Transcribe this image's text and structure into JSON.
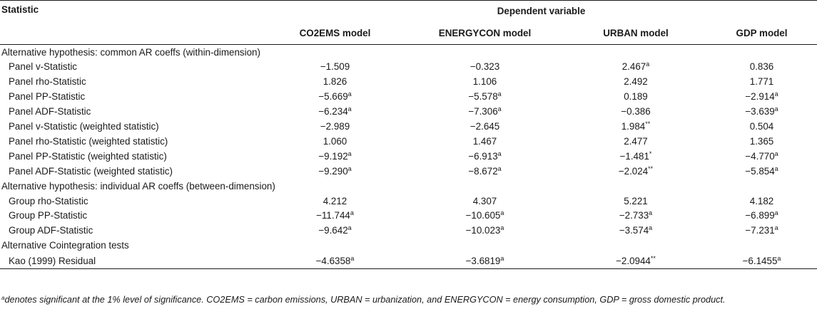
{
  "header": {
    "statistic": "Statistic",
    "dependent_variable": "Dependent variable",
    "models": [
      "CO2EMS model",
      "ENERGYCON model",
      "URBAN model",
      "GDP model"
    ]
  },
  "sections": [
    {
      "title": "Alternative hypothesis: common AR coeffs (within-dimension)",
      "rows": [
        {
          "label": "Panel v-Statistic",
          "cells": [
            {
              "v": "−1.509",
              "s": ""
            },
            {
              "v": "−0.323",
              "s": ""
            },
            {
              "v": "2.467",
              "s": "a"
            },
            {
              "v": "0.836",
              "s": ""
            }
          ]
        },
        {
          "label": "Panel rho-Statistic",
          "cells": [
            {
              "v": "1.826",
              "s": ""
            },
            {
              "v": "1.106",
              "s": ""
            },
            {
              "v": "2.492",
              "s": ""
            },
            {
              "v": "1.771",
              "s": ""
            }
          ]
        },
        {
          "label": "Panel PP-Statistic",
          "cells": [
            {
              "v": "−5.669",
              "s": "a"
            },
            {
              "v": "−5.578",
              "s": "a"
            },
            {
              "v": "0.189",
              "s": ""
            },
            {
              "v": "−2.914",
              "s": "a"
            }
          ]
        },
        {
          "label": "Panel ADF-Statistic",
          "cells": [
            {
              "v": "−6.234",
              "s": "a"
            },
            {
              "v": "−7.306",
              "s": "a"
            },
            {
              "v": "−0.386",
              "s": ""
            },
            {
              "v": "−3.639",
              "s": "a"
            }
          ]
        },
        {
          "label": "Panel v-Statistic (weighted statistic)",
          "cells": [
            {
              "v": "−2.989",
              "s": ""
            },
            {
              "v": "−2.645",
              "s": ""
            },
            {
              "v": "1.984",
              "s": "**"
            },
            {
              "v": "0.504",
              "s": ""
            }
          ]
        },
        {
          "label": "Panel rho-Statistic (weighted statistic)",
          "cells": [
            {
              "v": "1.060",
              "s": ""
            },
            {
              "v": "1.467",
              "s": ""
            },
            {
              "v": "2.477",
              "s": ""
            },
            {
              "v": "1.365",
              "s": ""
            }
          ]
        },
        {
          "label": "Panel PP-Statistic (weighted statistic)",
          "cells": [
            {
              "v": "−9.192",
              "s": "a"
            },
            {
              "v": "−6.913",
              "s": "a"
            },
            {
              "v": "−1.481",
              "s": "*"
            },
            {
              "v": "−4.770",
              "s": "a"
            }
          ]
        },
        {
          "label": "Panel ADF-Statistic (weighted statistic)",
          "cells": [
            {
              "v": "−9.290",
              "s": "a"
            },
            {
              "v": "−8.672",
              "s": "a"
            },
            {
              "v": "−2.024",
              "s": "**"
            },
            {
              "v": "−5.854",
              "s": "a"
            }
          ]
        }
      ]
    },
    {
      "title": "Alternative hypothesis: individual AR coeffs (between-dimension)",
      "rows": [
        {
          "label": "Group rho-Statistic",
          "cells": [
            {
              "v": "4.212",
              "s": ""
            },
            {
              "v": "4.307",
              "s": ""
            },
            {
              "v": "5.221",
              "s": ""
            },
            {
              "v": "4.182",
              "s": ""
            }
          ]
        },
        {
          "label": "Group PP-Statistic",
          "cells": [
            {
              "v": "−11.744",
              "s": "a"
            },
            {
              "v": "−10.605",
              "s": "a"
            },
            {
              "v": "−2.733",
              "s": "a"
            },
            {
              "v": "−6.899",
              "s": "a"
            }
          ]
        },
        {
          "label": "Group ADF-Statistic",
          "cells": [
            {
              "v": "−9.642",
              "s": "a"
            },
            {
              "v": "−10.023",
              "s": "a"
            },
            {
              "v": "−3.574",
              "s": "a"
            },
            {
              "v": "−7.231",
              "s": "a"
            }
          ]
        }
      ]
    },
    {
      "title": "Alternative Cointegration tests",
      "rows": [
        {
          "label": "Kao (1999) Residual",
          "cells": [
            {
              "v": "−4.6358",
              "s": "a"
            },
            {
              "v": "−3.6819",
              "s": "a"
            },
            {
              "v": "−2.0944",
              "s": "**"
            },
            {
              "v": "−6.1455",
              "s": "a"
            }
          ]
        }
      ]
    }
  ],
  "footnote": {
    "marker": "a",
    "text": "denotes significant at the 1% level of significance. CO2EMS = carbon emissions, URBAN = urbanization, and ENERGYCON = energy consumption, GDP = gross domestic product."
  }
}
